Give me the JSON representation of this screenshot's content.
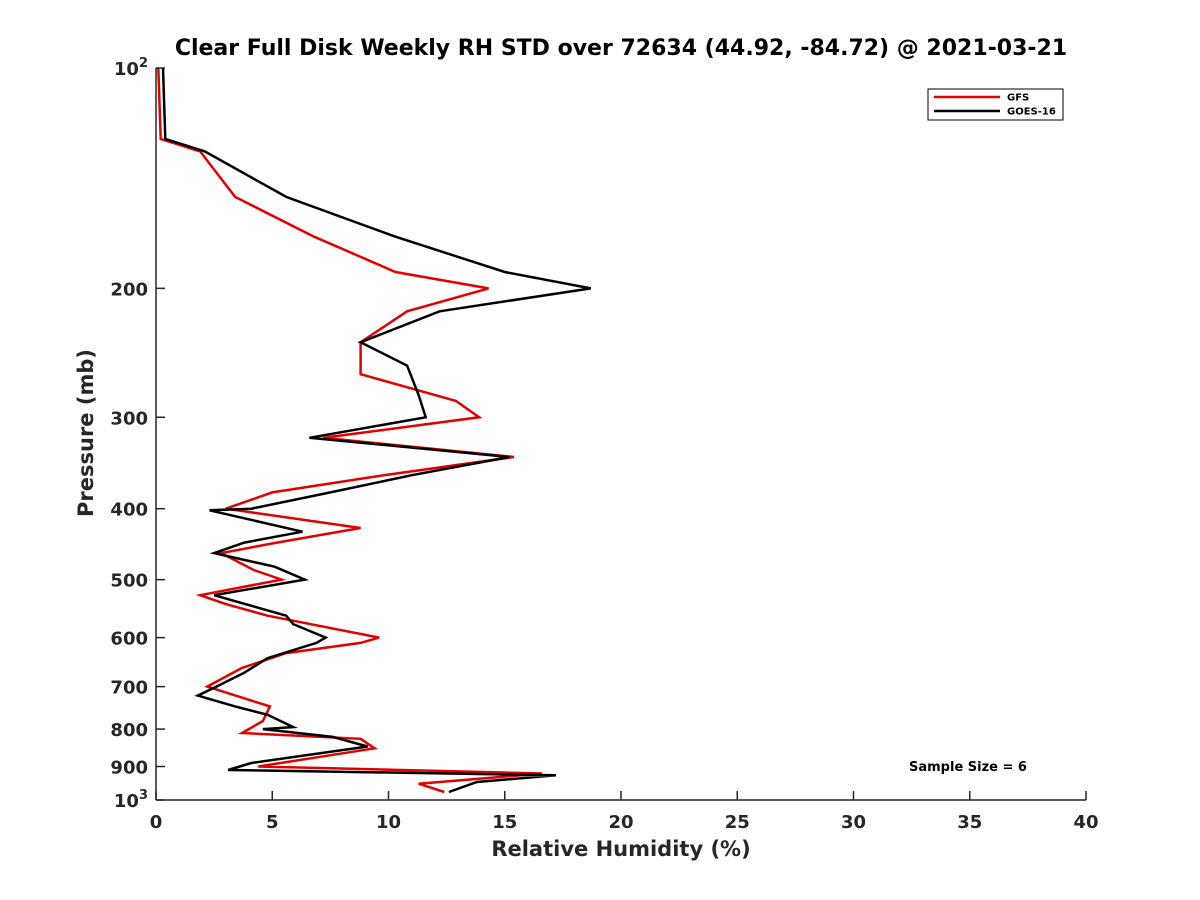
{
  "chart_data": {
    "type": "line",
    "title": "Clear Full Disk Weekly RH STD over 72634 (44.92, -84.72) @ 2021-03-21",
    "xlabel": "Relative Humidity (%)",
    "ylabel": "Pressure (mb)",
    "xlim": [
      0,
      40
    ],
    "ylim": [
      100,
      1000
    ],
    "y_scale": "log",
    "y_reversed": true,
    "x_ticks": [
      0,
      5,
      10,
      15,
      20,
      25,
      30,
      35,
      40
    ],
    "x_tick_labels": [
      "0",
      "5",
      "10",
      "15",
      "20",
      "25",
      "30",
      "35",
      "40"
    ],
    "y_ticks": [
      100,
      200,
      300,
      400,
      500,
      600,
      700,
      800,
      900,
      1000
    ],
    "y_tick_labels": [
      {
        "base": "10",
        "exp": "2"
      },
      {
        "base": "200",
        "exp": ""
      },
      {
        "base": "300",
        "exp": ""
      },
      {
        "base": "400",
        "exp": ""
      },
      {
        "base": "500",
        "exp": ""
      },
      {
        "base": "600",
        "exp": ""
      },
      {
        "base": "700",
        "exp": ""
      },
      {
        "base": "800",
        "exp": ""
      },
      {
        "base": "900",
        "exp": ""
      },
      {
        "base": "10",
        "exp": "3"
      }
    ],
    "legend_position": "top-right",
    "annotation": "Sample Size = 6",
    "series": [
      {
        "name": "GFS",
        "color": "#e00000",
        "points": [
          [
            0.1,
            100
          ],
          [
            0.2,
            125
          ],
          [
            1.9,
            130
          ],
          [
            3.4,
            150
          ],
          [
            6.8,
            170
          ],
          [
            10.3,
            190
          ],
          [
            14.3,
            200
          ],
          [
            10.8,
            215
          ],
          [
            8.8,
            237
          ],
          [
            8.8,
            262
          ],
          [
            12.9,
            285
          ],
          [
            13.9,
            300
          ],
          [
            7.2,
            320
          ],
          [
            15.4,
            340
          ],
          [
            9.8,
            360
          ],
          [
            5.0,
            380
          ],
          [
            3.0,
            400
          ],
          [
            8.8,
            425
          ],
          [
            5.2,
            445
          ],
          [
            2.8,
            460
          ],
          [
            4.2,
            485
          ],
          [
            5.4,
            500
          ],
          [
            1.9,
            525
          ],
          [
            3.0,
            540
          ],
          [
            4.8,
            560
          ],
          [
            9.6,
            600
          ],
          [
            8.8,
            610
          ],
          [
            5.6,
            630
          ],
          [
            3.7,
            660
          ],
          [
            2.2,
            700
          ],
          [
            4.9,
            745
          ],
          [
            4.6,
            780
          ],
          [
            3.7,
            810
          ],
          [
            8.8,
            825
          ],
          [
            9.4,
            850
          ],
          [
            4.4,
            900
          ],
          [
            16.6,
            920
          ],
          [
            11.3,
            950
          ],
          [
            12.4,
            975
          ]
        ]
      },
      {
        "name": "GOES-16",
        "color": "#000000",
        "points": [
          [
            0.3,
            100
          ],
          [
            0.4,
            125
          ],
          [
            2.1,
            130
          ],
          [
            5.6,
            150
          ],
          [
            10.3,
            170
          ],
          [
            15.0,
            190
          ],
          [
            18.7,
            200
          ],
          [
            12.2,
            215
          ],
          [
            8.8,
            237
          ],
          [
            10.8,
            255
          ],
          [
            11.3,
            280
          ],
          [
            11.6,
            300
          ],
          [
            6.6,
            320
          ],
          [
            15.2,
            340
          ],
          [
            11.0,
            360
          ],
          [
            7.5,
            380
          ],
          [
            4.1,
            400
          ],
          [
            2.3,
            402
          ],
          [
            6.3,
            430
          ],
          [
            3.8,
            445
          ],
          [
            2.5,
            460
          ],
          [
            5.1,
            480
          ],
          [
            6.4,
            500
          ],
          [
            2.5,
            525
          ],
          [
            5.6,
            560
          ],
          [
            5.9,
            575
          ],
          [
            7.3,
            600
          ],
          [
            6.9,
            610
          ],
          [
            4.8,
            640
          ],
          [
            3.8,
            670
          ],
          [
            2.6,
            700
          ],
          [
            1.8,
            720
          ],
          [
            3.4,
            745
          ],
          [
            4.8,
            765
          ],
          [
            5.9,
            795
          ],
          [
            4.6,
            800
          ],
          [
            7.6,
            820
          ],
          [
            9.1,
            845
          ],
          [
            4.1,
            890
          ],
          [
            3.1,
            910
          ],
          [
            17.2,
            925
          ],
          [
            13.8,
            945
          ],
          [
            12.6,
            975
          ]
        ]
      }
    ]
  }
}
